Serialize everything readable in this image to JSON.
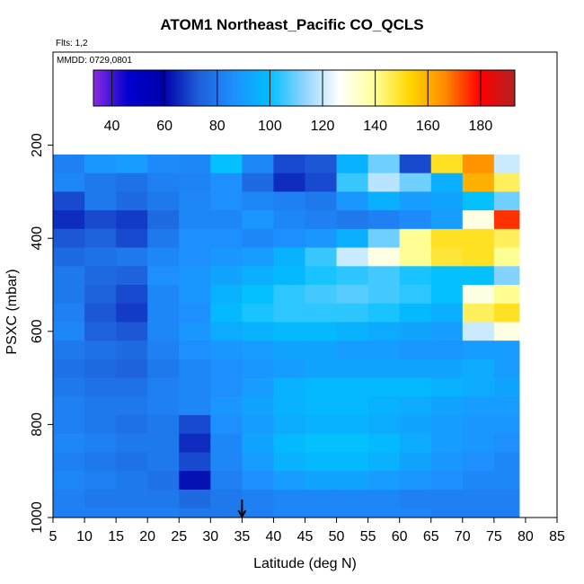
{
  "chart_data": {
    "type": "heatmap",
    "title": "ATOM1 Northeast_Pacific CO_QCLS",
    "notes": {
      "flights": "Flts: 1,2",
      "dates": "MMDD: 0729,0801"
    },
    "xlabel": "Latitude (deg N)",
    "ylabel": "PSXC (mbar)",
    "xlim": [
      5,
      85
    ],
    "ylim": [
      1000,
      0
    ],
    "xticks": [
      "5",
      "10",
      "15",
      "20",
      "25",
      "30",
      "35",
      "40",
      "45",
      "50",
      "55",
      "60",
      "65",
      "70",
      "75",
      "80",
      "85"
    ],
    "yticks": [
      "200",
      "400",
      "600",
      "800",
      "1000"
    ],
    "colorbar": {
      "range": [
        33,
        193
      ],
      "ticks": [
        "40",
        "60",
        "80",
        "100",
        "120",
        "140",
        "160",
        "180"
      ],
      "colors": [
        "#8a2be2",
        "#0000cd",
        "#0000aa",
        "#1e5fd8",
        "#1e90ff",
        "#00bfff",
        "#8fd3ff",
        "#ffffff",
        "#ffff99",
        "#ffd700",
        "#ff8c00",
        "#ff0000",
        "#b22222"
      ]
    },
    "marker": {
      "x": 35,
      "label": ""
    },
    "pressure_levels": [
      220,
      260,
      300,
      340,
      380,
      420,
      460,
      500,
      540,
      580,
      620,
      660,
      700,
      740,
      780,
      820,
      860,
      900,
      940,
      980,
      1000
    ],
    "latitude_bins": [
      5,
      10,
      15,
      20,
      25,
      30,
      35,
      40,
      45,
      50,
      55,
      60,
      65,
      70,
      75,
      79
    ],
    "values": [
      [
        82,
        88,
        90,
        85,
        84,
        100,
        84,
        70,
        72,
        96,
        110,
        70,
        150,
        165,
        120,
        55
      ],
      [
        84,
        80,
        78,
        82,
        83,
        86,
        76,
        66,
        70,
        105,
        118,
        110,
        95,
        160,
        145,
        105
      ],
      [
        70,
        80,
        76,
        80,
        84,
        86,
        84,
        82,
        80,
        88,
        95,
        90,
        92,
        100,
        110,
        110
      ],
      [
        66,
        70,
        68,
        76,
        84,
        84,
        88,
        84,
        82,
        80,
        82,
        85,
        90,
        130,
        175,
        95
      ],
      [
        72,
        74,
        70,
        80,
        86,
        86,
        84,
        86,
        88,
        95,
        110,
        140,
        150,
        150,
        145,
        100
      ],
      [
        76,
        78,
        80,
        84,
        86,
        88,
        90,
        96,
        105,
        120,
        130,
        140,
        148,
        150,
        140,
        95
      ],
      [
        80,
        76,
        74,
        86,
        88,
        92,
        95,
        98,
        102,
        104,
        106,
        102,
        100,
        100,
        112,
        88
      ],
      [
        80,
        74,
        70,
        84,
        88,
        96,
        100,
        104,
        106,
        108,
        106,
        104,
        100,
        130,
        140,
        86
      ],
      [
        82,
        72,
        68,
        84,
        86,
        98,
        102,
        104,
        104,
        104,
        102,
        98,
        95,
        145,
        150,
        85
      ],
      [
        84,
        74,
        72,
        84,
        88,
        94,
        96,
        98,
        98,
        96,
        94,
        92,
        90,
        120,
        130,
        84
      ],
      [
        80,
        78,
        76,
        82,
        86,
        88,
        90,
        92,
        92,
        90,
        90,
        88,
        88,
        90,
        90,
        84
      ],
      [
        78,
        76,
        74,
        80,
        84,
        86,
        88,
        90,
        92,
        92,
        92,
        92,
        92,
        94,
        90,
        84
      ],
      [
        80,
        78,
        78,
        82,
        84,
        86,
        90,
        96,
        98,
        98,
        98,
        98,
        96,
        94,
        92,
        86
      ],
      [
        82,
        80,
        80,
        82,
        84,
        88,
        92,
        96,
        98,
        98,
        96,
        94,
        92,
        90,
        90,
        86
      ],
      [
        82,
        80,
        78,
        80,
        70,
        86,
        90,
        94,
        96,
        96,
        94,
        92,
        90,
        88,
        88,
        86
      ],
      [
        84,
        82,
        80,
        80,
        66,
        84,
        92,
        98,
        100,
        100,
        98,
        94,
        90,
        88,
        86,
        84
      ],
      [
        82,
        80,
        78,
        80,
        70,
        84,
        90,
        96,
        98,
        98,
        96,
        92,
        88,
        86,
        84,
        84
      ],
      [
        84,
        82,
        80,
        78,
        62,
        82,
        86,
        90,
        92,
        92,
        90,
        88,
        86,
        84,
        84,
        82
      ],
      [
        82,
        80,
        80,
        80,
        76,
        80,
        82,
        84,
        84,
        84,
        84,
        82,
        82,
        82,
        82,
        82
      ],
      [
        82,
        82,
        82,
        82,
        80,
        80,
        82,
        84,
        84,
        84,
        84,
        84,
        82,
        82,
        82,
        82
      ],
      [
        82,
        82,
        82,
        82,
        82,
        82,
        82,
        82,
        82,
        82,
        82,
        82,
        82,
        82,
        82,
        82
      ]
    ]
  }
}
